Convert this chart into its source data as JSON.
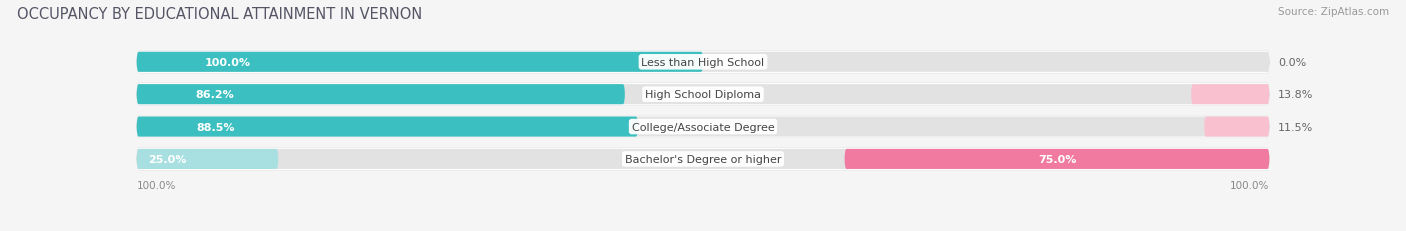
{
  "title": "OCCUPANCY BY EDUCATIONAL ATTAINMENT IN VERNON",
  "source": "Source: ZipAtlas.com",
  "categories": [
    "Less than High School",
    "High School Diploma",
    "College/Associate Degree",
    "Bachelor's Degree or higher"
  ],
  "owner_pct": [
    100.0,
    86.2,
    88.5,
    25.0
  ],
  "renter_pct": [
    0.0,
    13.8,
    11.5,
    75.0
  ],
  "owner_color": "#3bbfc0",
  "owner_color_light": "#a8dfe0",
  "renter_color": "#f07aa0",
  "renter_color_light": "#f9c0d0",
  "bar_height": 0.62,
  "background_color": "#f5f5f5",
  "bar_bg_color": "#e2e2e2",
  "title_fontsize": 10.5,
  "label_fontsize": 8.0,
  "pct_fontsize": 8.0,
  "source_fontsize": 7.5,
  "legend_fontsize": 8.0,
  "axis_label_fontsize": 7.5
}
